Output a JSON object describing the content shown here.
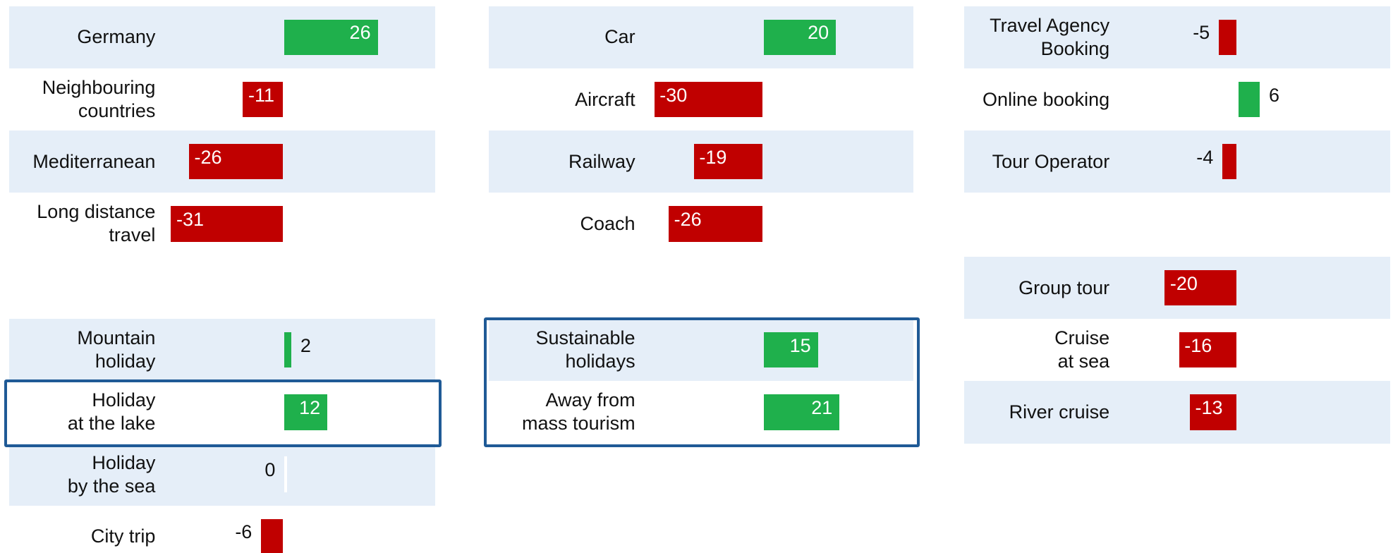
{
  "chart_data": [
    {
      "type": "bar",
      "categories": [
        "Germany",
        "Neighbouring\ncountries",
        "Mediterranean",
        "Long distance\ntravel"
      ],
      "values": [
        26,
        -11,
        -26,
        -31
      ],
      "colors": {
        "positive": "#1fb04c",
        "negative": "#c00000"
      }
    },
    {
      "type": "bar",
      "categories": [
        "Car",
        "Aircraft",
        "Railway",
        "Coach"
      ],
      "values": [
        20,
        -30,
        -19,
        -26
      ],
      "colors": {
        "positive": "#1fb04c",
        "negative": "#c00000"
      }
    },
    {
      "type": "bar",
      "categories": [
        "Travel Agency\nBooking",
        "Online booking",
        "Tour Operator"
      ],
      "values": [
        -5,
        6,
        -4
      ],
      "colors": {
        "positive": "#1fb04c",
        "negative": "#c00000"
      }
    },
    {
      "type": "bar",
      "categories": [
        "Mountain\nholiday",
        "Holiday\nat the lake",
        "Holiday\nby the sea",
        "City trip"
      ],
      "values": [
        2,
        12,
        0,
        -6
      ],
      "highlight": [
        1
      ],
      "colors": {
        "positive": "#1fb04c",
        "negative": "#c00000"
      }
    },
    {
      "type": "bar",
      "categories": [
        "Sustainable\nholidays",
        "Away from\nmass tourism"
      ],
      "values": [
        15,
        21
      ],
      "highlight": [
        0,
        1
      ],
      "colors": {
        "positive": "#1fb04c",
        "negative": "#c00000"
      }
    },
    {
      "type": "bar",
      "categories": [
        "Group tour",
        "Cruise\nat sea",
        "River cruise"
      ],
      "values": [
        -20,
        -16,
        -13
      ],
      "colors": {
        "positive": "#1fb04c",
        "negative": "#c00000"
      }
    }
  ]
}
